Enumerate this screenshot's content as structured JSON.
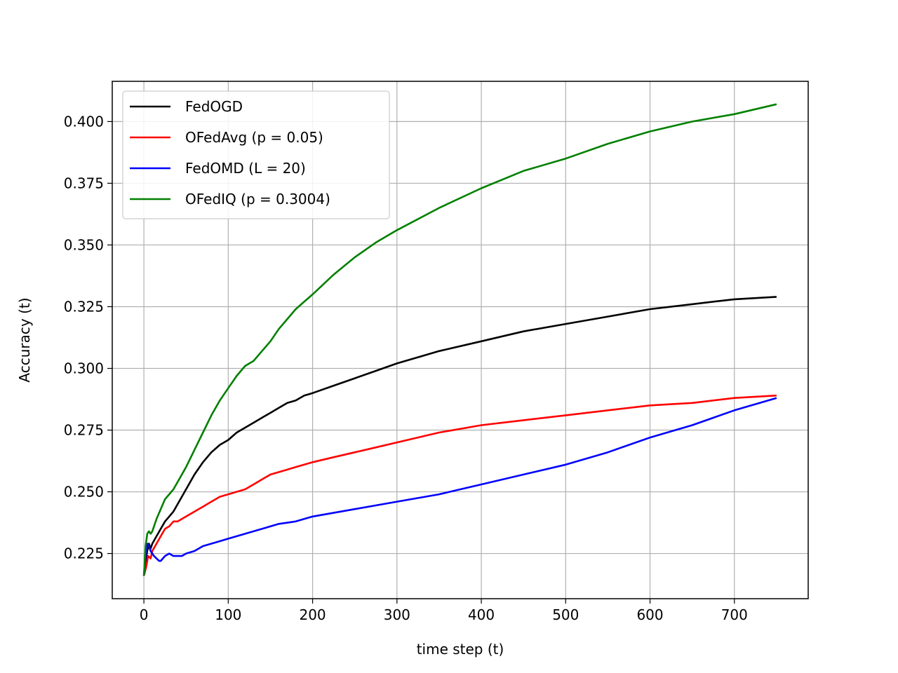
{
  "chart_data": {
    "type": "line",
    "title": "",
    "xlabel": "time step (t)",
    "ylabel": "Accuracy (t)",
    "xlim": [
      -37.5,
      787.5
    ],
    "ylim": [
      0.2067,
      0.4163
    ],
    "xticks": [
      0,
      100,
      200,
      300,
      400,
      500,
      600,
      700
    ],
    "xtick_labels": [
      "0",
      "100",
      "200",
      "300",
      "400",
      "500",
      "600",
      "700"
    ],
    "yticks": [
      0.225,
      0.25,
      0.275,
      0.3,
      0.325,
      0.35,
      0.375,
      0.4
    ],
    "ytick_labels": [
      "0.225",
      "0.250",
      "0.275",
      "0.300",
      "0.325",
      "0.350",
      "0.375",
      "0.400"
    ],
    "grid": true,
    "legend_position": "top-left",
    "series": [
      {
        "name": "FedOGD",
        "color": "#000000",
        "x": [
          0,
          2,
          4,
          6,
          8,
          10,
          15,
          20,
          25,
          30,
          35,
          40,
          50,
          60,
          70,
          80,
          90,
          100,
          110,
          120,
          130,
          140,
          150,
          160,
          170,
          180,
          190,
          200,
          225,
          250,
          275,
          300,
          350,
          400,
          450,
          500,
          550,
          600,
          650,
          700,
          750
        ],
        "y": [
          0.216,
          0.222,
          0.226,
          0.229,
          0.227,
          0.229,
          0.232,
          0.235,
          0.238,
          0.24,
          0.242,
          0.245,
          0.251,
          0.257,
          0.262,
          0.266,
          0.269,
          0.271,
          0.274,
          0.276,
          0.278,
          0.28,
          0.282,
          0.284,
          0.286,
          0.287,
          0.289,
          0.29,
          0.293,
          0.296,
          0.299,
          0.302,
          0.307,
          0.311,
          0.315,
          0.318,
          0.321,
          0.324,
          0.326,
          0.328,
          0.329
        ]
      },
      {
        "name": "OFedAvg (p = 0.05)",
        "color": "#ff0000",
        "x": [
          0,
          3,
          5,
          8,
          10,
          15,
          20,
          25,
          30,
          35,
          40,
          45,
          50,
          60,
          70,
          80,
          90,
          100,
          110,
          120,
          130,
          140,
          150,
          160,
          170,
          180,
          190,
          200,
          225,
          250,
          275,
          300,
          350,
          400,
          450,
          500,
          550,
          600,
          650,
          700,
          750
        ],
        "y": [
          0.216,
          0.22,
          0.224,
          0.223,
          0.226,
          0.229,
          0.232,
          0.235,
          0.236,
          0.238,
          0.238,
          0.239,
          0.24,
          0.242,
          0.244,
          0.246,
          0.248,
          0.249,
          0.25,
          0.251,
          0.253,
          0.255,
          0.257,
          0.258,
          0.259,
          0.26,
          0.261,
          0.262,
          0.264,
          0.266,
          0.268,
          0.27,
          0.274,
          0.277,
          0.279,
          0.281,
          0.283,
          0.285,
          0.286,
          0.288,
          0.289
        ]
      },
      {
        "name": "FedOMD (L = 20)",
        "color": "#0000ff",
        "x": [
          0,
          2,
          4,
          6,
          8,
          10,
          12,
          15,
          18,
          20,
          25,
          30,
          35,
          40,
          45,
          50,
          60,
          70,
          80,
          90,
          100,
          120,
          140,
          160,
          180,
          200,
          250,
          300,
          350,
          400,
          450,
          500,
          550,
          600,
          650,
          700,
          750
        ],
        "y": [
          0.216,
          0.224,
          0.229,
          0.228,
          0.226,
          0.225,
          0.224,
          0.223,
          0.222,
          0.222,
          0.224,
          0.225,
          0.224,
          0.224,
          0.224,
          0.225,
          0.226,
          0.228,
          0.229,
          0.23,
          0.231,
          0.233,
          0.235,
          0.237,
          0.238,
          0.24,
          0.243,
          0.246,
          0.249,
          0.253,
          0.257,
          0.261,
          0.266,
          0.272,
          0.277,
          0.283,
          0.288
        ]
      },
      {
        "name": "OFedIQ (p = 0.3004)",
        "color": "#008000",
        "x": [
          0,
          2,
          4,
          6,
          8,
          10,
          15,
          20,
          25,
          30,
          35,
          40,
          50,
          60,
          70,
          80,
          90,
          100,
          110,
          120,
          130,
          140,
          150,
          160,
          170,
          180,
          190,
          200,
          225,
          250,
          275,
          300,
          350,
          400,
          450,
          500,
          550,
          600,
          650,
          700,
          750
        ],
        "y": [
          0.216,
          0.228,
          0.233,
          0.234,
          0.233,
          0.234,
          0.239,
          0.243,
          0.247,
          0.249,
          0.251,
          0.254,
          0.26,
          0.267,
          0.274,
          0.281,
          0.287,
          0.292,
          0.297,
          0.301,
          0.303,
          0.307,
          0.311,
          0.316,
          0.32,
          0.324,
          0.327,
          0.33,
          0.338,
          0.345,
          0.351,
          0.356,
          0.365,
          0.373,
          0.38,
          0.385,
          0.391,
          0.396,
          0.4,
          0.403,
          0.407
        ]
      }
    ]
  }
}
